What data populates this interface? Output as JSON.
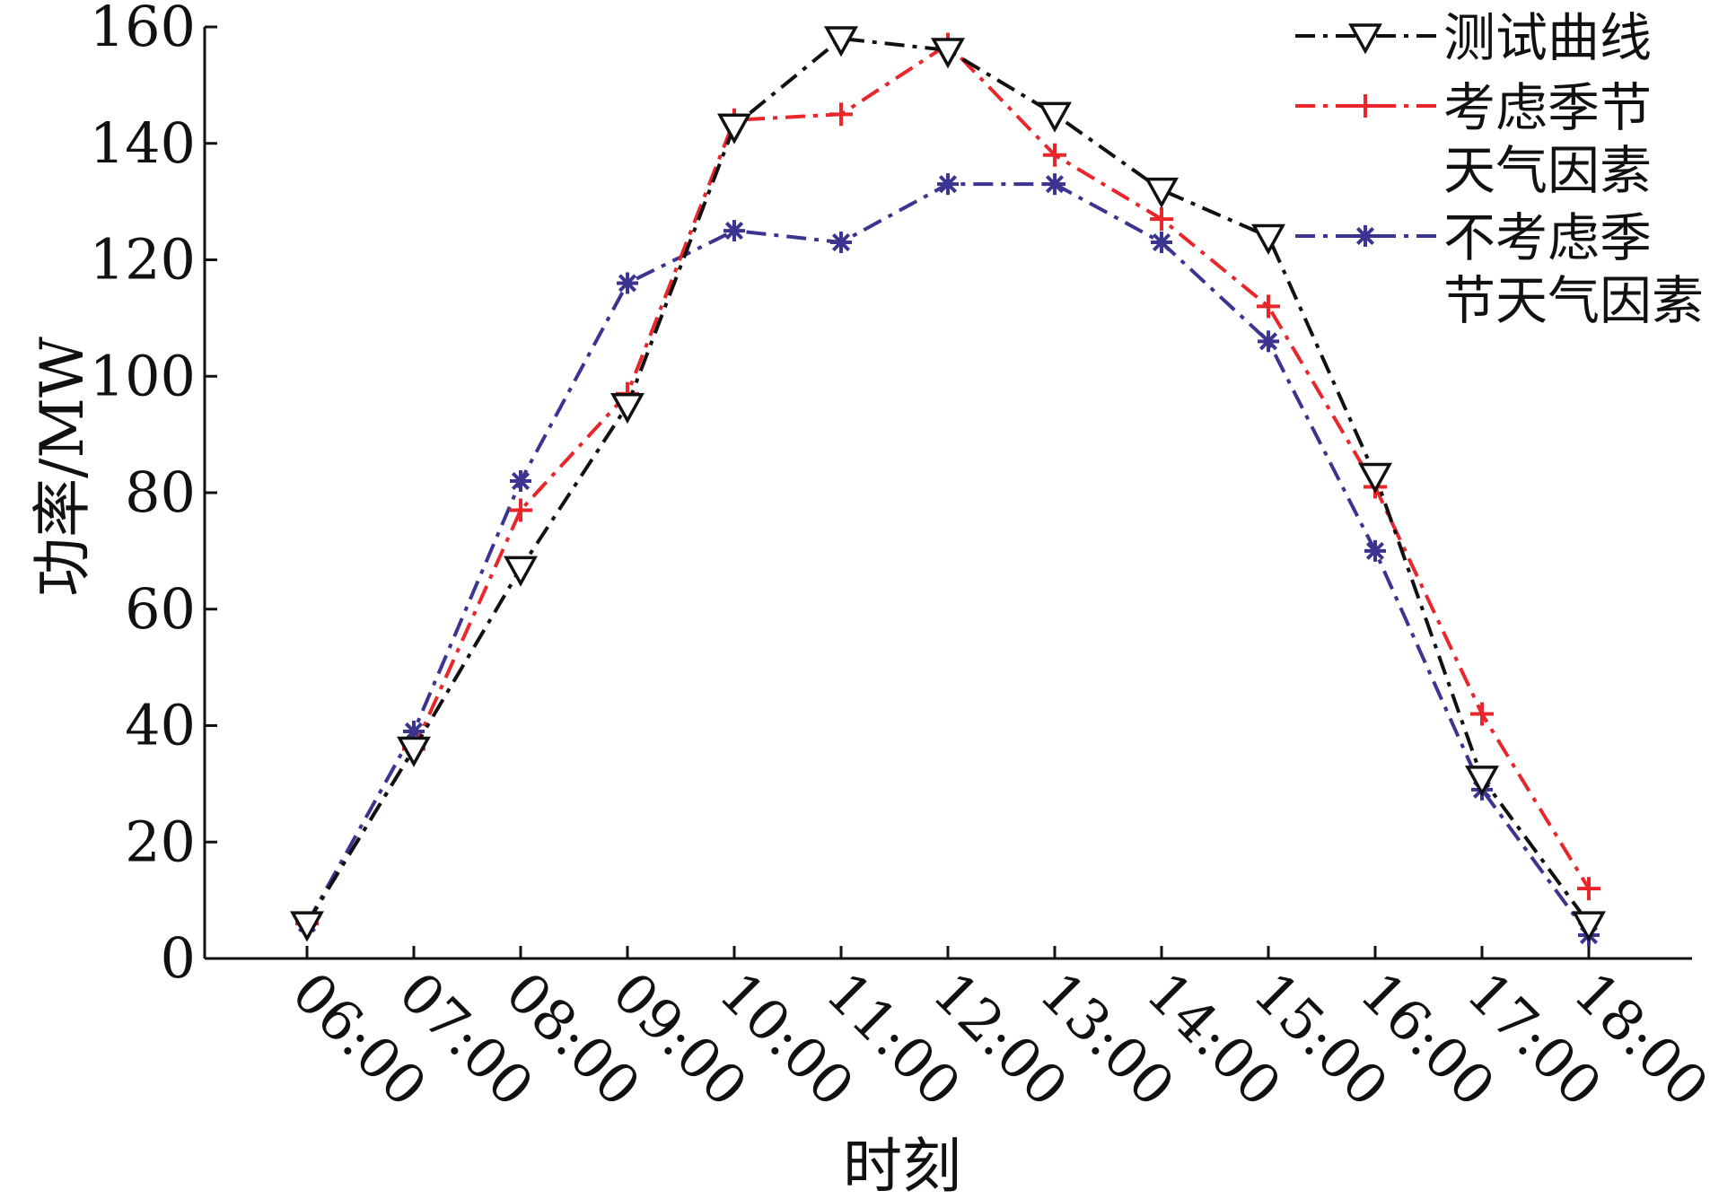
{
  "chart_data": {
    "type": "line",
    "xlabel": "时刻",
    "ylabel": "功率/MW",
    "categories": [
      "06:00",
      "07:00",
      "08:00",
      "09:00",
      "10:00",
      "11:00",
      "12:00",
      "13:00",
      "14:00",
      "15:00",
      "16:00",
      "17:00",
      "18:00"
    ],
    "ylim": [
      0,
      160
    ],
    "yticks": [
      0,
      20,
      40,
      60,
      80,
      100,
      120,
      140,
      160
    ],
    "grid": false,
    "legend_position": "top-right",
    "series": [
      {
        "name": "测试曲线",
        "color": "#111111",
        "marker": "triangle-down-open",
        "values": [
          6,
          36,
          67,
          95,
          143,
          158,
          156,
          145,
          132,
          124,
          83,
          31,
          6
        ]
      },
      {
        "name": "考虑季节天气因素",
        "legend_lines": [
          "考虑季节",
          "天气因素"
        ],
        "color": "#e8262b",
        "marker": "plus",
        "values": [
          6,
          36,
          77,
          97,
          144,
          145,
          157,
          138,
          127,
          112,
          81,
          42,
          12
        ]
      },
      {
        "name": "不考虑季节天气因素",
        "legend_lines": [
          "不考虑季",
          "节天气因素"
        ],
        "color": "#3b3490",
        "marker": "asterisk",
        "values": [
          6,
          39,
          82,
          116,
          125,
          123,
          133,
          133,
          123,
          106,
          70,
          29,
          4
        ]
      }
    ]
  }
}
